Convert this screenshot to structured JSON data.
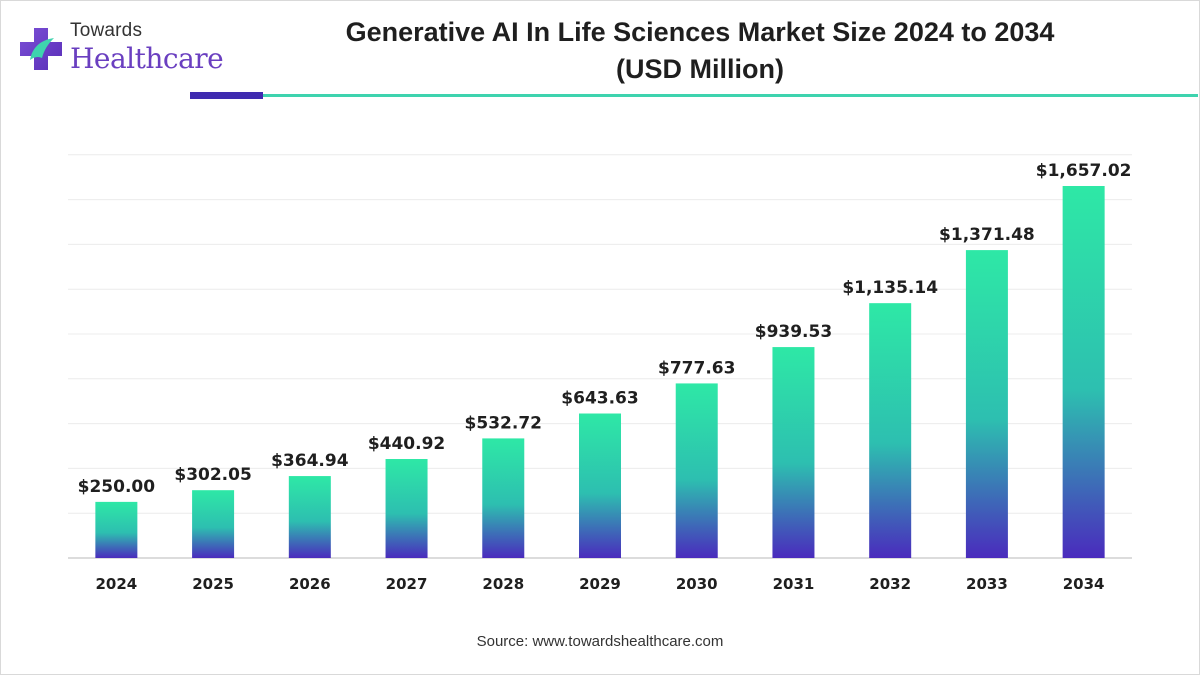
{
  "logo": {
    "line1": "Towards",
    "line2": "Healthcare"
  },
  "title_line1": "Generative AI In Life Sciences Market Size 2024 to 2034",
  "title_line2": "(USD Million)",
  "source": "Source: www.towardshealthcare.com",
  "colors": {
    "bar_top": "#2ee8a6",
    "bar_bottom": "#4a2bbd",
    "accent_dark": "#3f2bb0",
    "accent_light": "#3ed3ae",
    "logo_purple": "#6a3fc0"
  },
  "chart_data": {
    "type": "bar",
    "title": "Generative AI In Life Sciences Market Size 2024 to 2034 (USD Million)",
    "categories": [
      "2024",
      "2025",
      "2026",
      "2027",
      "2028",
      "2029",
      "2030",
      "2031",
      "2032",
      "2033",
      "2034"
    ],
    "values": [
      250.0,
      302.05,
      364.94,
      440.92,
      532.72,
      643.63,
      777.63,
      939.53,
      1135.14,
      1371.48,
      1657.02
    ],
    "labels": [
      "$250.00",
      "$302.05",
      "$364.94",
      "$440.92",
      "$532.72",
      "$643.63",
      "$777.63",
      "$939.53",
      "$1,135.14",
      "$1,371.48",
      "$1,657.02"
    ],
    "ylim": [
      0,
      1800
    ],
    "grid": true,
    "xlabel": "",
    "ylabel": ""
  }
}
